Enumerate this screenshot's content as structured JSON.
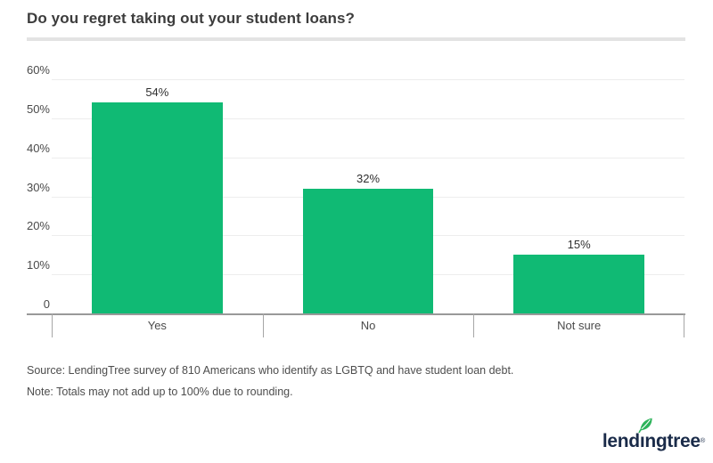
{
  "title": "Do you regret taking out your student loans?",
  "chart_data": {
    "type": "bar",
    "categories": [
      "Yes",
      "No",
      "Not sure"
    ],
    "values": [
      54,
      32,
      15
    ],
    "value_labels": [
      "54%",
      "32%",
      "15%"
    ],
    "title": "Do you regret taking out your student loans?",
    "xlabel": "",
    "ylabel": "",
    "ylim": [
      0,
      60
    ],
    "ytick_values": [
      60,
      50,
      40,
      30,
      20,
      10,
      0
    ],
    "ytick_labels": [
      "60%",
      "50%",
      "40%",
      "30%",
      "20%",
      "10%",
      "0"
    ],
    "grid": true,
    "legend": false,
    "bar_color": "#10ba74"
  },
  "footnotes": {
    "source": "Source: LendingTree survey of 810 Americans who identify as LGBTQ and have student loan debt.",
    "note": "Note: Totals may not add up to 100% due to rounding."
  },
  "logo": {
    "name": "lendingtree",
    "text_before_i": "lend",
    "dotless_i": "ı",
    "text_after_i": "ngtree",
    "registered_mark": "®",
    "text_color": "#1a2b49",
    "leaf_color": "#2db35a"
  },
  "colors": {
    "bar": "#10ba74",
    "axis_line": "#999999",
    "tick": "#a6a6a6",
    "gridline": "#ededed",
    "title_text": "#3c3c3c",
    "label_text": "#4a4a4a",
    "title_rule": "#e3e3e3"
  }
}
